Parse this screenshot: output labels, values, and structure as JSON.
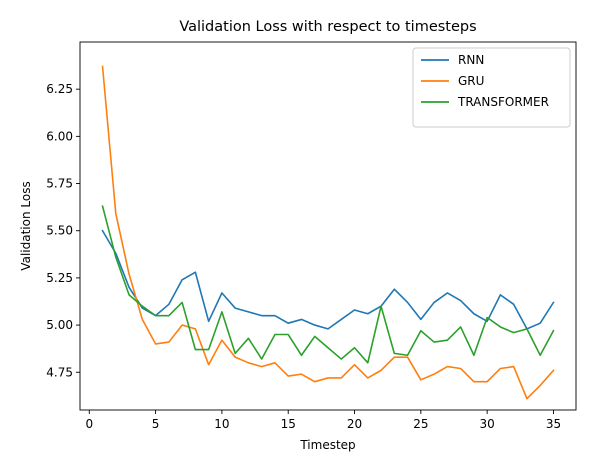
{
  "chart_data": {
    "type": "line",
    "title": "Validation Loss with respect to timesteps",
    "xlabel": "Timestep",
    "ylabel": "Validation Loss",
    "xlim": [
      -0.7,
      36.7
    ],
    "ylim": [
      4.55,
      6.5
    ],
    "xticks": [
      0,
      5,
      10,
      15,
      20,
      25,
      30,
      35
    ],
    "yticks": [
      4.75,
      5.0,
      5.25,
      5.5,
      5.75,
      6.0,
      6.25
    ],
    "grid": false,
    "legend_position": "top-right",
    "x": [
      1,
      2,
      3,
      4,
      5,
      6,
      7,
      8,
      9,
      10,
      11,
      12,
      13,
      14,
      15,
      16,
      17,
      18,
      19,
      20,
      21,
      22,
      23,
      24,
      25,
      26,
      27,
      28,
      29,
      30,
      31,
      32,
      33,
      34,
      35
    ],
    "series": [
      {
        "name": "RNN",
        "color": "#1f77b4",
        "values": [
          5.5,
          5.38,
          5.2,
          5.09,
          5.05,
          5.11,
          5.24,
          5.28,
          5.02,
          5.17,
          5.09,
          5.07,
          5.05,
          5.05,
          5.01,
          5.03,
          5.0,
          4.98,
          5.03,
          5.08,
          5.06,
          5.1,
          5.19,
          5.12,
          5.03,
          5.12,
          5.17,
          5.13,
          5.06,
          5.02,
          5.16,
          5.11,
          4.98,
          5.01,
          5.12
        ]
      },
      {
        "name": "GRU",
        "color": "#ff7f0e",
        "values": [
          6.37,
          5.59,
          5.27,
          5.03,
          4.9,
          4.91,
          5.0,
          4.98,
          4.79,
          4.92,
          4.83,
          4.8,
          4.78,
          4.8,
          4.73,
          4.74,
          4.7,
          4.72,
          4.72,
          4.79,
          4.72,
          4.76,
          4.83,
          4.83,
          4.71,
          4.74,
          4.78,
          4.77,
          4.7,
          4.7,
          4.77,
          4.78,
          4.61,
          4.68,
          4.76
        ]
      },
      {
        "name": "TRANSFORMER",
        "color": "#2ca02c",
        "values": [
          5.63,
          5.36,
          5.16,
          5.1,
          5.05,
          5.05,
          5.12,
          4.87,
          4.87,
          5.07,
          4.85,
          4.93,
          4.82,
          4.95,
          4.95,
          4.84,
          4.94,
          4.88,
          4.82,
          4.88,
          4.8,
          5.1,
          4.85,
          4.84,
          4.97,
          4.91,
          4.92,
          4.99,
          4.84,
          5.04,
          4.99,
          4.96,
          4.98,
          4.84,
          4.97
        ]
      }
    ]
  }
}
